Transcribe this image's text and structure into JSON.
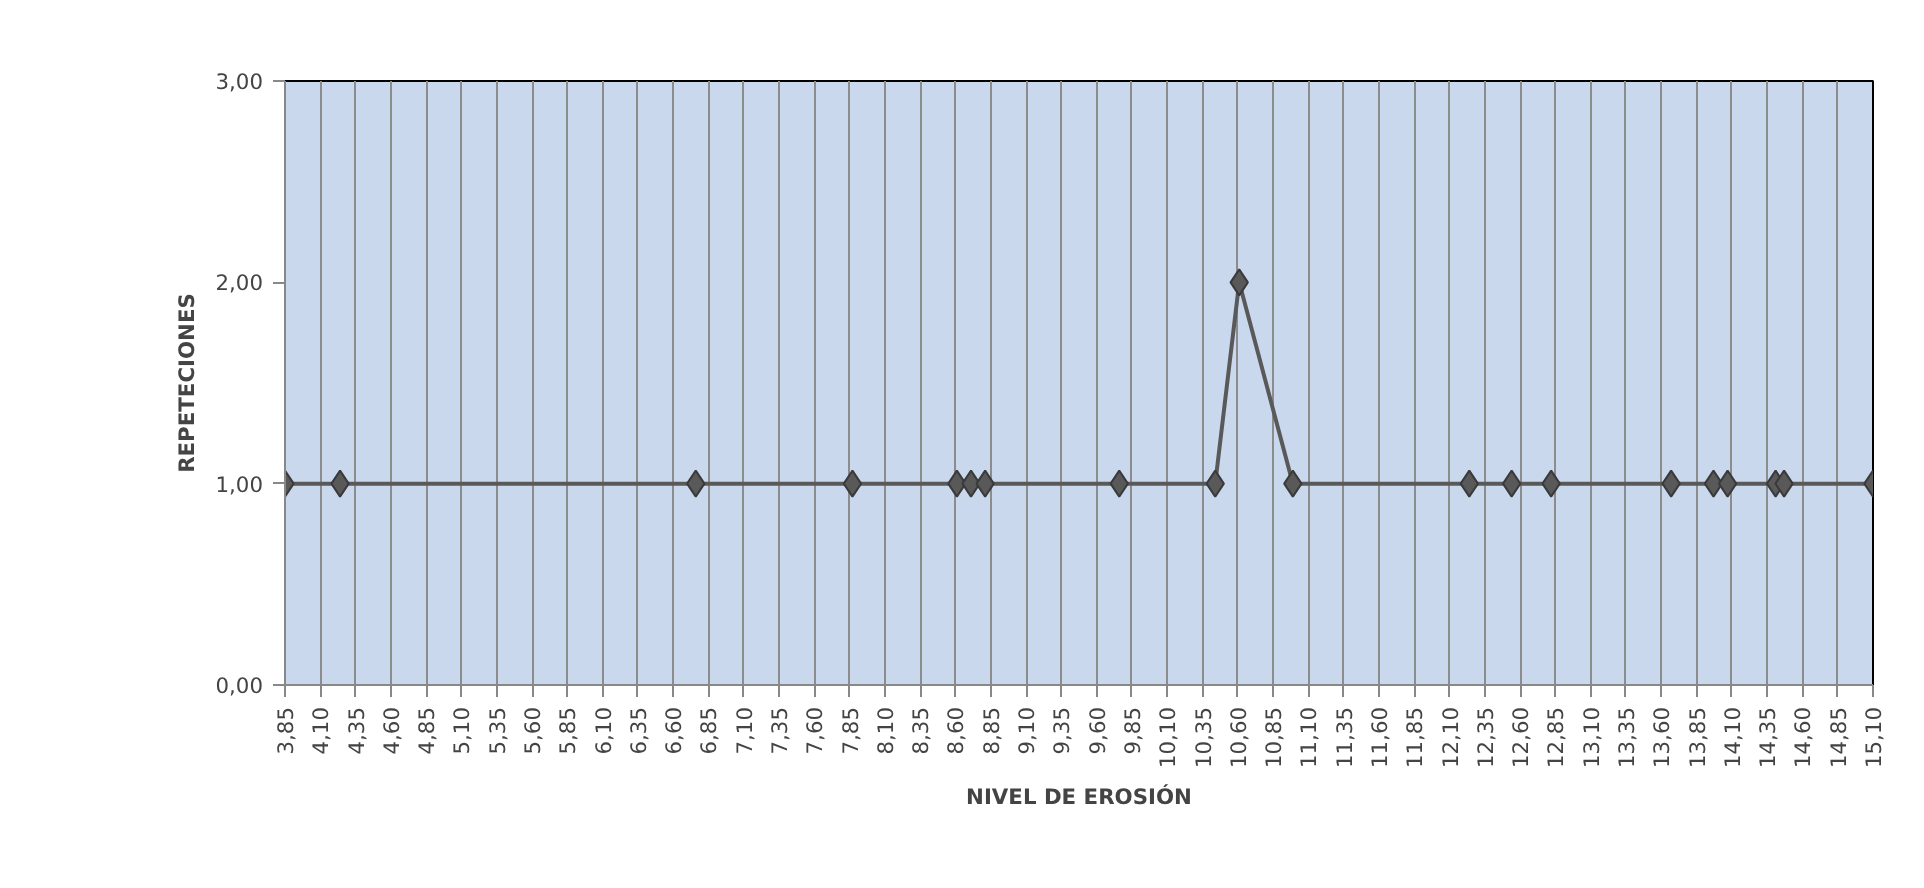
{
  "chart_data": {
    "type": "line",
    "xlabel": "NIVEL DE EROSIÓN",
    "ylabel": "REPETECIONES",
    "x": [
      3.85,
      4.24,
      6.76,
      7.87,
      8.61,
      8.71,
      8.81,
      9.76,
      10.44,
      10.61,
      10.99,
      12.24,
      12.54,
      12.82,
      13.67,
      13.97,
      14.07,
      14.41,
      14.47,
      15.1
    ],
    "series": [
      {
        "color": "#595959",
        "values": [
          1,
          1,
          1,
          1,
          1,
          1,
          1,
          1,
          1,
          2,
          1,
          1,
          1,
          1,
          1,
          1,
          1,
          1,
          1,
          1
        ]
      }
    ],
    "xlim": [
      3.85,
      15.1
    ],
    "xticks": [
      {
        "value": 3.85,
        "label": "3,85"
      },
      {
        "value": 4.1,
        "label": "4,10"
      },
      {
        "value": 4.35,
        "label": "4,35"
      },
      {
        "value": 4.6,
        "label": "4,60"
      },
      {
        "value": 4.85,
        "label": "4,85"
      },
      {
        "value": 5.1,
        "label": "5,10"
      },
      {
        "value": 5.35,
        "label": "5,35"
      },
      {
        "value": 5.6,
        "label": "5,60"
      },
      {
        "value": 5.85,
        "label": "5,85"
      },
      {
        "value": 6.1,
        "label": "6,10"
      },
      {
        "value": 6.35,
        "label": "6,35"
      },
      {
        "value": 6.6,
        "label": "6,60"
      },
      {
        "value": 6.85,
        "label": "6,85"
      },
      {
        "value": 7.1,
        "label": "7,10"
      },
      {
        "value": 7.35,
        "label": "7,35"
      },
      {
        "value": 7.6,
        "label": "7,60"
      },
      {
        "value": 7.85,
        "label": "7,85"
      },
      {
        "value": 8.1,
        "label": "8,10"
      },
      {
        "value": 8.35,
        "label": "8,35"
      },
      {
        "value": 8.6,
        "label": "8,60"
      },
      {
        "value": 8.85,
        "label": "8,85"
      },
      {
        "value": 9.1,
        "label": "9,10"
      },
      {
        "value": 9.35,
        "label": "9,35"
      },
      {
        "value": 9.6,
        "label": "9,60"
      },
      {
        "value": 9.85,
        "label": "9,85"
      },
      {
        "value": 10.1,
        "label": "10,10"
      },
      {
        "value": 10.35,
        "label": "10,35"
      },
      {
        "value": 10.6,
        "label": "10,60"
      },
      {
        "value": 10.85,
        "label": "10,85"
      },
      {
        "value": 11.1,
        "label": "11,10"
      },
      {
        "value": 11.35,
        "label": "11,35"
      },
      {
        "value": 11.6,
        "label": "11,60"
      },
      {
        "value": 11.85,
        "label": "11,85"
      },
      {
        "value": 12.1,
        "label": "12,10"
      },
      {
        "value": 12.35,
        "label": "12,35"
      },
      {
        "value": 12.6,
        "label": "12,60"
      },
      {
        "value": 12.85,
        "label": "12,85"
      },
      {
        "value": 13.1,
        "label": "13,10"
      },
      {
        "value": 13.35,
        "label": "13,35"
      },
      {
        "value": 13.6,
        "label": "13,60"
      },
      {
        "value": 13.85,
        "label": "13,85"
      },
      {
        "value": 14.1,
        "label": "14,10"
      },
      {
        "value": 14.35,
        "label": "14,35"
      },
      {
        "value": 14.6,
        "label": "14,60"
      },
      {
        "value": 14.85,
        "label": "14,85"
      },
      {
        "value": 15.1,
        "label": "15,10"
      }
    ],
    "ylim": [
      0,
      3
    ],
    "yticks": [
      {
        "value": 0,
        "label": "0,00"
      },
      {
        "value": 1,
        "label": "1,00"
      },
      {
        "value": 2,
        "label": "2,00"
      },
      {
        "value": 3,
        "label": "3,00"
      }
    ],
    "grid": "x",
    "marker": "diamond",
    "line_style": "solid"
  }
}
